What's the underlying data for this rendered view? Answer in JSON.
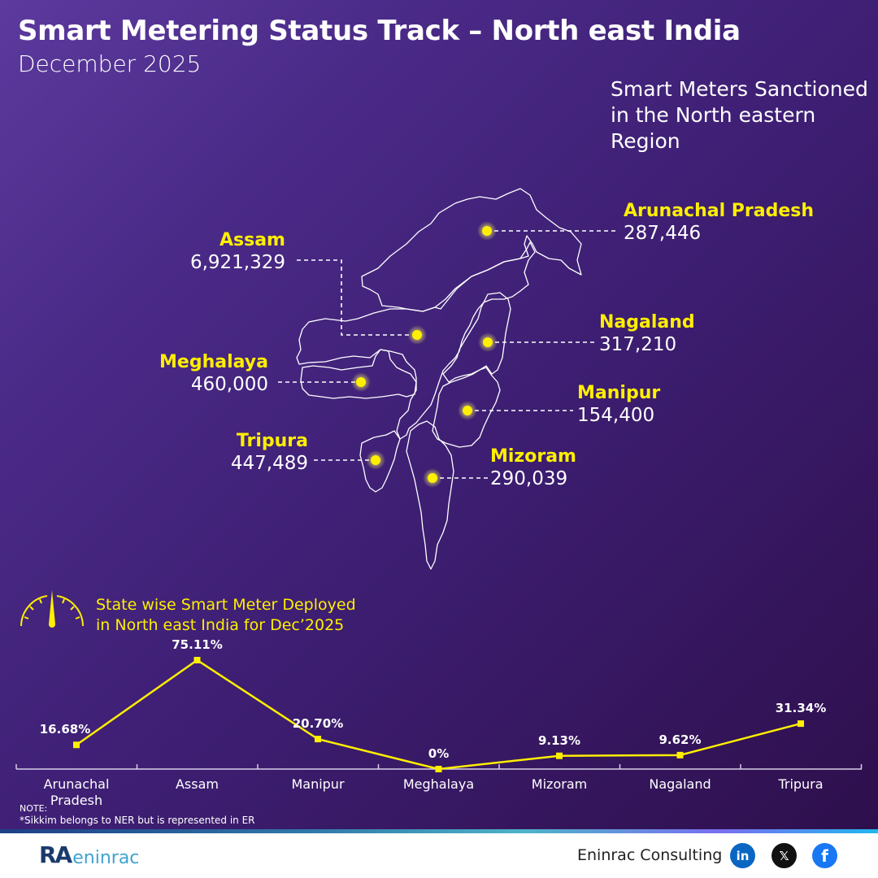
{
  "header": {
    "title": "Smart Metering Status Track – North east India",
    "subtitle": "December 2025"
  },
  "map": {
    "title": "Smart Meters Sanctioned in the North eastern Region",
    "title_lines": [
      "Smart Meters Sanctioned",
      "in the North eastern",
      "Region"
    ],
    "states": [
      {
        "name": "Assam",
        "value": "6,921,329"
      },
      {
        "name": "Meghalaya",
        "value": "460,000"
      },
      {
        "name": "Tripura",
        "value": "447,489"
      },
      {
        "name": "Arunachal Pradesh",
        "value": "287,446"
      },
      {
        "name": "Nagaland",
        "value": "317,210"
      },
      {
        "name": "Manipur",
        "value": "154,400"
      },
      {
        "name": "Mizoram",
        "value": "290,039"
      }
    ]
  },
  "chart_section": {
    "heading_lines": [
      "State wise Smart Meter Deployed",
      "in North east India for Dec’2025"
    ],
    "gauge_icon": "gauge-icon"
  },
  "chart_data": {
    "type": "line",
    "title": "State wise Smart Meter Deployed in North east India for Dec’2025",
    "categories": [
      "Arunachal Pradesh",
      "Assam",
      "Manipur",
      "Meghalaya",
      "Mizoram",
      "Nagaland",
      "Tripura"
    ],
    "values": [
      16.68,
      75.11,
      20.7,
      0,
      9.13,
      9.62,
      31.34
    ],
    "value_labels": [
      "16.68%",
      "75.11%",
      "20.70%",
      "0%",
      "9.13%",
      "9.62%",
      "31.34%"
    ],
    "xlabel": "",
    "ylabel": "",
    "ylim": [
      0,
      80
    ],
    "grid": false,
    "legend": "none",
    "line_color": "#ffef00"
  },
  "notes": {
    "heading": "NOTE:",
    "text": "*Sikkim belongs to NER but is represented in ER"
  },
  "footer": {
    "logo_text_bold": "RA",
    "logo_text": "eninrac",
    "brand": "Eninrac Consulting",
    "social": [
      {
        "icon": "linkedin-icon",
        "label": "in",
        "color": "#0a66c2"
      },
      {
        "icon": "x-icon",
        "label": "𝕏",
        "color": "#111111"
      },
      {
        "icon": "facebook-icon",
        "label": "f",
        "color": "#1877f2"
      }
    ]
  },
  "colors": {
    "accent": "#ffef00",
    "bg_start": "#5c3a9e",
    "bg_end": "#2e0f4c"
  }
}
